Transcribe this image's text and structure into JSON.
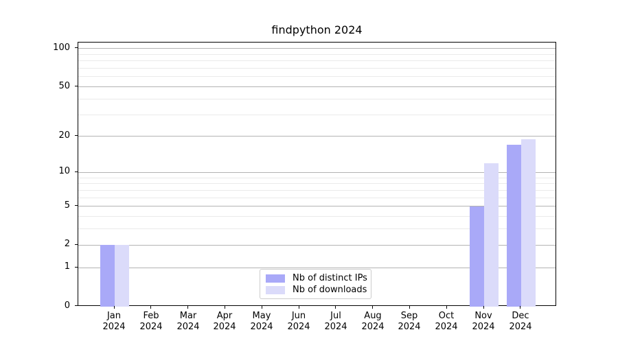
{
  "chart_data": {
    "type": "bar",
    "title": "findpython 2024",
    "categories": [
      "Jan 2024",
      "Feb 2024",
      "Mar 2024",
      "Apr 2024",
      "May 2024",
      "Jun 2024",
      "Jul 2024",
      "Aug 2024",
      "Sep 2024",
      "Oct 2024",
      "Nov 2024",
      "Dec 2024"
    ],
    "series": [
      {
        "name": "Nb of distinct IPs",
        "color": "#a9a9f8",
        "values": [
          2,
          0,
          0,
          0,
          0,
          0,
          0,
          0,
          0,
          0,
          5,
          17
        ]
      },
      {
        "name": "Nb of downloads",
        "color": "#dbdbfa",
        "values": [
          2,
          0,
          0,
          0,
          0,
          0,
          0,
          0,
          0,
          0,
          12,
          19
        ]
      }
    ],
    "y_scale": "log1p",
    "y_ticks": [
      0,
      1,
      2,
      5,
      10,
      20,
      50,
      100
    ],
    "y_tick_labels": [
      "0",
      "1",
      "2",
      "5",
      "10",
      "20",
      "50",
      "100"
    ],
    "y_minor_gridlines": [
      3,
      4,
      6,
      7,
      8,
      9,
      30,
      40,
      60,
      70,
      80,
      90
    ],
    "ylim": [
      0,
      112
    ],
    "grid": true,
    "legend_position": "lower center",
    "colors": {
      "major_grid": "#b3b3b3",
      "minor_grid": "#eaeaea",
      "axis": "#000000",
      "background": "#ffffff"
    }
  }
}
